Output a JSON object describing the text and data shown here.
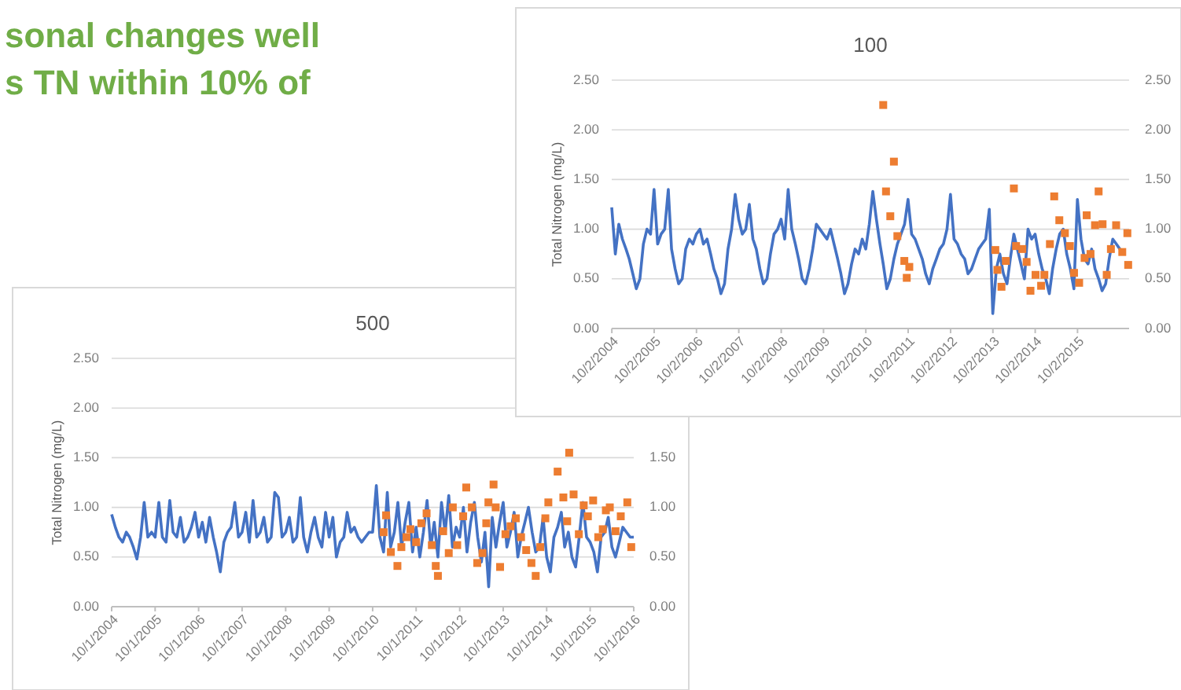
{
  "chart_data": [
    {
      "type": "other",
      "annotations": [
        "sonal changes well",
        "s TN within 10% of"
      ]
    },
    {
      "type": "line",
      "title": "100",
      "ylabel": "Total Nitrogen (mg/L)",
      "xlim": [
        "2004-10-01",
        "2016-12-20"
      ],
      "ylim": [
        0,
        2.5
      ],
      "y2lim": [
        0,
        2.5
      ],
      "grid": "y",
      "xticks": [
        {
          "value": "2004-10-02",
          "label": "10/2/2004"
        },
        {
          "value": "2005-10-02",
          "label": "10/2/2005"
        },
        {
          "value": "2006-10-02",
          "label": "10/2/2006"
        },
        {
          "value": "2007-10-02",
          "label": "10/2/2007"
        },
        {
          "value": "2008-10-02",
          "label": "10/2/2008"
        },
        {
          "value": "2009-10-02",
          "label": "10/2/2009"
        },
        {
          "value": "2010-10-02",
          "label": "10/2/2010"
        },
        {
          "value": "2011-10-02",
          "label": "10/2/2011"
        },
        {
          "value": "2012-10-02",
          "label": "10/2/2012"
        },
        {
          "value": "2013-10-02",
          "label": "10/2/2013"
        },
        {
          "value": "2014-10-02",
          "label": "10/2/2014"
        },
        {
          "value": "2015-10-02",
          "label": "10/2/2015"
        }
      ],
      "yticks": [
        {
          "value": 0,
          "label": "0.00"
        },
        {
          "value": 0.5,
          "label": "0.50"
        },
        {
          "value": 1,
          "label": "1.00"
        },
        {
          "value": 1.5,
          "label": "1.50"
        },
        {
          "value": 2,
          "label": "2.00"
        },
        {
          "value": 2.5,
          "label": "2.50"
        }
      ],
      "y2ticks": [
        {
          "value": 0,
          "label": "0.00"
        },
        {
          "value": 0.5,
          "label": "0.50"
        },
        {
          "value": 1,
          "label": "1.00"
        },
        {
          "value": 1.5,
          "label": "1.50"
        },
        {
          "value": 2,
          "label": "2.00"
        },
        {
          "value": 2.5,
          "label": "2.50"
        }
      ],
      "series": [
        {
          "type": "line",
          "color": "#4472c4",
          "marker": "none",
          "x": [
            "2004-10",
            "2004-11",
            "2004-12",
            "2005-01",
            "2005-02",
            "2005-03",
            "2005-04",
            "2005-05",
            "2005-06",
            "2005-07",
            "2005-08",
            "2005-09",
            "2005-10",
            "2005-11",
            "2005-12",
            "2006-01",
            "2006-02",
            "2006-03",
            "2006-04",
            "2006-05",
            "2006-06",
            "2006-07",
            "2006-08",
            "2006-09",
            "2006-10",
            "2006-11",
            "2006-12",
            "2007-01",
            "2007-02",
            "2007-03",
            "2007-04",
            "2007-05",
            "2007-06",
            "2007-07",
            "2007-08",
            "2007-09",
            "2007-10",
            "2007-11",
            "2007-12",
            "2008-01",
            "2008-02",
            "2008-03",
            "2008-04",
            "2008-05",
            "2008-06",
            "2008-07",
            "2008-08",
            "2008-09",
            "2008-10",
            "2008-11",
            "2008-12",
            "2009-01",
            "2009-02",
            "2009-03",
            "2009-04",
            "2009-05",
            "2009-06",
            "2009-07",
            "2009-08",
            "2009-09",
            "2009-10",
            "2009-11",
            "2009-12",
            "2010-01",
            "2010-02",
            "2010-03",
            "2010-04",
            "2010-05",
            "2010-06",
            "2010-07",
            "2010-08",
            "2010-09",
            "2010-10",
            "2010-11",
            "2010-12",
            "2011-01",
            "2011-02",
            "2011-03",
            "2011-04",
            "2011-05",
            "2011-06",
            "2011-07",
            "2011-08",
            "2011-09",
            "2011-10",
            "2011-11",
            "2011-12",
            "2012-01",
            "2012-02",
            "2012-03",
            "2012-04",
            "2012-05",
            "2012-06",
            "2012-07",
            "2012-08",
            "2012-09",
            "2012-10",
            "2012-11",
            "2012-12",
            "2013-01",
            "2013-02",
            "2013-03",
            "2013-04",
            "2013-05",
            "2013-06",
            "2013-07",
            "2013-08",
            "2013-09",
            "2013-10",
            "2013-11",
            "2013-12",
            "2014-01",
            "2014-02",
            "2014-03",
            "2014-04",
            "2014-05",
            "2014-06",
            "2014-07",
            "2014-08",
            "2014-09",
            "2014-10",
            "2014-11",
            "2014-12",
            "2015-01",
            "2015-02",
            "2015-03",
            "2015-04",
            "2015-05",
            "2015-06",
            "2015-07",
            "2015-08",
            "2015-09",
            "2015-10",
            "2015-11",
            "2015-12",
            "2016-01",
            "2016-02",
            "2016-03",
            "2016-04",
            "2016-05",
            "2016-06",
            "2016-07",
            "2016-08",
            "2016-09",
            "2016-10",
            "2016-11"
          ],
          "values": [
            1.22,
            0.75,
            1.05,
            0.9,
            0.8,
            0.7,
            0.55,
            0.4,
            0.5,
            0.85,
            1.0,
            0.95,
            1.4,
            0.85,
            0.95,
            1.0,
            1.4,
            0.8,
            0.6,
            0.45,
            0.5,
            0.8,
            0.9,
            0.85,
            0.95,
            1.0,
            0.85,
            0.9,
            0.75,
            0.6,
            0.5,
            0.35,
            0.45,
            0.8,
            1.0,
            1.35,
            1.1,
            0.95,
            1.0,
            1.25,
            0.9,
            0.8,
            0.6,
            0.45,
            0.5,
            0.75,
            0.95,
            1.0,
            1.1,
            0.9,
            1.4,
            1.0,
            0.85,
            0.7,
            0.5,
            0.45,
            0.6,
            0.8,
            1.05,
            1.0,
            0.95,
            0.9,
            1.0,
            0.85,
            0.7,
            0.55,
            0.35,
            0.45,
            0.65,
            0.8,
            0.75,
            0.9,
            0.8,
            1.05,
            1.38,
            1.1,
            0.85,
            0.65,
            0.4,
            0.5,
            0.7,
            0.85,
            0.95,
            1.05,
            1.3,
            0.95,
            0.9,
            0.8,
            0.7,
            0.55,
            0.45,
            0.6,
            0.7,
            0.8,
            0.85,
            1.0,
            1.35,
            0.9,
            0.85,
            0.75,
            0.7,
            0.55,
            0.6,
            0.7,
            0.8,
            0.85,
            0.9,
            1.2,
            0.15,
            0.6,
            0.75,
            0.55,
            0.45,
            0.7,
            0.95,
            0.8,
            0.65,
            0.5,
            1.0,
            0.9,
            0.95,
            0.75,
            0.6,
            0.5,
            0.35,
            0.6,
            0.8,
            0.95,
            1.0,
            0.75,
            0.6,
            0.4,
            1.3,
            0.9,
            0.7,
            0.65,
            0.8,
            0.6,
            0.5,
            0.38,
            0.45,
            0.7,
            0.9,
            0.85,
            0.8,
            0.75
          ]
        },
        {
          "type": "scatter",
          "color": "#ed7d31",
          "marker": "square",
          "x": [
            "2011-03-01",
            "2011-03-25",
            "2011-05-01",
            "2011-06-01",
            "2011-07-01",
            "2011-08-30",
            "2011-09-20",
            "2011-10-12",
            "2013-10-23",
            "2013-11-10",
            "2013-12-15",
            "2014-01-22",
            "2014-04-01",
            "2014-04-20",
            "2014-06-13",
            "2014-07-20",
            "2014-08-22",
            "2014-10-05",
            "2014-11-22",
            "2014-12-20",
            "2015-02-06",
            "2015-03-15",
            "2015-04-28",
            "2015-06-15",
            "2015-07-28",
            "2015-09-02",
            "2015-10-16",
            "2015-12-02",
            "2015-12-20",
            "2016-01-22",
            "2016-03-01",
            "2016-04-01",
            "2016-05-05",
            "2016-06-10",
            "2016-07-16",
            "2016-08-30",
            "2016-10-22",
            "2016-12-05",
            "2016-12-12"
          ],
          "values": [
            2.25,
            1.38,
            1.13,
            1.68,
            0.93,
            0.68,
            0.51,
            0.62,
            0.79,
            0.59,
            0.42,
            0.68,
            1.41,
            0.83,
            0.8,
            0.67,
            0.38,
            0.54,
            0.43,
            0.54,
            0.85,
            1.33,
            1.09,
            0.96,
            0.83,
            0.56,
            0.46,
            0.71,
            1.14,
            0.75,
            1.04,
            1.38,
            1.05,
            0.54,
            0.8,
            1.04,
            0.77,
            0.96,
            0.64
          ]
        }
      ]
    },
    {
      "type": "line",
      "title": "500",
      "ylabel": "Total Nitrogen (mg/L)",
      "xlim": [
        "2004-10-01",
        "2016-10-01"
      ],
      "ylim": [
        0,
        2.5
      ],
      "y2lim": [
        0,
        2.5
      ],
      "grid": "y",
      "xticks": [
        {
          "value": "2004-10-01",
          "label": "10/1/2004"
        },
        {
          "value": "2005-10-01",
          "label": "10/1/2005"
        },
        {
          "value": "2006-10-01",
          "label": "10/1/2006"
        },
        {
          "value": "2007-10-01",
          "label": "10/1/2007"
        },
        {
          "value": "2008-10-01",
          "label": "10/1/2008"
        },
        {
          "value": "2009-10-01",
          "label": "10/1/2009"
        },
        {
          "value": "2010-10-01",
          "label": "10/1/2010"
        },
        {
          "value": "2011-10-01",
          "label": "10/1/2011"
        },
        {
          "value": "2012-10-01",
          "label": "10/1/2012"
        },
        {
          "value": "2013-10-01",
          "label": "10/1/2013"
        },
        {
          "value": "2014-10-01",
          "label": "10/1/2014"
        },
        {
          "value": "2015-10-01",
          "label": "10/1/2015"
        },
        {
          "value": "2016-10-01",
          "label": "10/1/2016"
        }
      ],
      "yticks": [
        {
          "value": 0,
          "label": "0.00"
        },
        {
          "value": 0.5,
          "label": "0.50"
        },
        {
          "value": 1,
          "label": "1.00"
        },
        {
          "value": 1.5,
          "label": "1.50"
        },
        {
          "value": 2,
          "label": "2.00"
        },
        {
          "value": 2.5,
          "label": "2.50"
        }
      ],
      "y2ticks": [
        {
          "value": 0,
          "label": "0.00"
        },
        {
          "value": 0.5,
          "label": "0.50"
        },
        {
          "value": 1,
          "label": "1.00"
        },
        {
          "value": 1.5,
          "label": "1.50"
        }
      ],
      "series": [
        {
          "type": "line",
          "color": "#4472c4",
          "marker": "none",
          "x": [
            "2004-10",
            "2004-11",
            "2004-12",
            "2005-01",
            "2005-02",
            "2005-03",
            "2005-04",
            "2005-05",
            "2005-06",
            "2005-07",
            "2005-08",
            "2005-09",
            "2005-10",
            "2005-11",
            "2005-12",
            "2006-01",
            "2006-02",
            "2006-03",
            "2006-04",
            "2006-05",
            "2006-06",
            "2006-07",
            "2006-08",
            "2006-09",
            "2006-10",
            "2006-11",
            "2006-12",
            "2007-01",
            "2007-02",
            "2007-03",
            "2007-04",
            "2007-05",
            "2007-06",
            "2007-07",
            "2007-08",
            "2007-09",
            "2007-10",
            "2007-11",
            "2007-12",
            "2008-01",
            "2008-02",
            "2008-03",
            "2008-04",
            "2008-05",
            "2008-06",
            "2008-07",
            "2008-08",
            "2008-09",
            "2008-10",
            "2008-11",
            "2008-12",
            "2009-01",
            "2009-02",
            "2009-03",
            "2009-04",
            "2009-05",
            "2009-06",
            "2009-07",
            "2009-08",
            "2009-09",
            "2009-10",
            "2009-11",
            "2009-12",
            "2010-01",
            "2010-02",
            "2010-03",
            "2010-04",
            "2010-05",
            "2010-06",
            "2010-07",
            "2010-08",
            "2010-09",
            "2010-10",
            "2010-11",
            "2010-12",
            "2011-01",
            "2011-02",
            "2011-03",
            "2011-04",
            "2011-05",
            "2011-06",
            "2011-07",
            "2011-08",
            "2011-09",
            "2011-10",
            "2011-11",
            "2011-12",
            "2012-01",
            "2012-02",
            "2012-03",
            "2012-04",
            "2012-05",
            "2012-06",
            "2012-07",
            "2012-08",
            "2012-09",
            "2012-10",
            "2012-11",
            "2012-12",
            "2013-01",
            "2013-02",
            "2013-03",
            "2013-04",
            "2013-05",
            "2013-06",
            "2013-07",
            "2013-08",
            "2013-09",
            "2013-10",
            "2013-11",
            "2013-12",
            "2014-01",
            "2014-02",
            "2014-03",
            "2014-04",
            "2014-05",
            "2014-06",
            "2014-07",
            "2014-08",
            "2014-09",
            "2014-10",
            "2014-11",
            "2014-12",
            "2015-01",
            "2015-02",
            "2015-03",
            "2015-04",
            "2015-05",
            "2015-06",
            "2015-07",
            "2015-08",
            "2015-09",
            "2015-10",
            "2015-11",
            "2015-12",
            "2016-01",
            "2016-02",
            "2016-03",
            "2016-04",
            "2016-05",
            "2016-06",
            "2016-07",
            "2016-08",
            "2016-09",
            "2016-10"
          ],
          "values": [
            0.93,
            0.8,
            0.7,
            0.65,
            0.75,
            0.7,
            0.6,
            0.48,
            0.7,
            1.05,
            0.7,
            0.75,
            0.7,
            1.05,
            0.7,
            0.65,
            1.07,
            0.75,
            0.7,
            0.9,
            0.65,
            0.7,
            0.8,
            0.95,
            0.7,
            0.85,
            0.65,
            0.9,
            0.7,
            0.55,
            0.35,
            0.65,
            0.75,
            0.8,
            1.05,
            0.7,
            0.75,
            0.95,
            0.65,
            1.07,
            0.7,
            0.75,
            0.9,
            0.65,
            0.7,
            1.15,
            1.1,
            0.7,
            0.75,
            0.9,
            0.65,
            0.7,
            1.1,
            0.7,
            0.55,
            0.75,
            0.9,
            0.7,
            0.6,
            0.95,
            0.7,
            0.9,
            0.5,
            0.65,
            0.7,
            0.95,
            0.75,
            0.8,
            0.7,
            0.65,
            0.7,
            0.75,
            0.75,
            1.22,
            0.7,
            0.55,
            1.15,
            0.6,
            0.75,
            1.05,
            0.6,
            0.85,
            1.05,
            0.55,
            0.8,
            0.5,
            0.75,
            1.07,
            0.6,
            0.85,
            0.5,
            1.05,
            0.75,
            1.12,
            0.6,
            0.8,
            0.7,
            1.0,
            0.55,
            0.85,
            1.05,
            0.7,
            0.45,
            0.75,
            0.2,
            0.9,
            0.6,
            0.85,
            1.05,
            0.6,
            0.75,
            0.95,
            0.5,
            0.7,
            0.85,
            1.0,
            0.75,
            0.55,
            0.6,
            0.9,
            0.5,
            0.35,
            0.7,
            0.8,
            0.95,
            0.6,
            0.75,
            0.5,
            0.4,
            0.7,
            1.05,
            0.7,
            0.65,
            0.55,
            0.35,
            0.7,
            0.75,
            0.9,
            0.6,
            0.5,
            0.65,
            0.8,
            0.75,
            0.7,
            0.7
          ]
        },
        {
          "type": "scatter",
          "color": "#ed7d31",
          "marker": "square",
          "x": [
            "2011-01-01",
            "2011-01-22",
            "2011-03-03",
            "2011-04-27",
            "2011-05-30",
            "2011-07-12",
            "2011-08-14",
            "2011-10-01",
            "2011-11-14",
            "2011-12-28",
            "2012-02-10",
            "2012-03-14",
            "2012-04-01",
            "2012-05-15",
            "2012-07-01",
            "2012-08-04",
            "2012-09-10",
            "2012-10-30",
            "2012-11-25",
            "2013-01-11",
            "2013-02-25",
            "2013-04-10",
            "2013-05-12",
            "2013-05-30",
            "2013-07-12",
            "2013-07-30",
            "2013-09-05",
            "2013-10-20",
            "2013-12-02",
            "2014-01-15",
            "2014-02-28",
            "2014-04-12",
            "2014-05-26",
            "2014-07-01",
            "2014-08-08",
            "2014-09-20",
            "2014-10-15",
            "2015-01-01",
            "2015-02-18",
            "2015-03-22",
            "2015-04-08",
            "2015-05-15",
            "2015-06-28",
            "2015-08-08",
            "2015-09-12",
            "2015-10-26",
            "2015-12-08",
            "2016-01-15",
            "2016-02-10",
            "2016-03-14",
            "2016-05-01",
            "2016-06-14",
            "2016-08-08",
            "2016-09-10"
          ],
          "values": [
            0.75,
            0.92,
            0.55,
            0.41,
            0.6,
            0.7,
            0.78,
            0.65,
            0.84,
            0.94,
            0.62,
            0.41,
            0.31,
            0.76,
            0.54,
            1.0,
            0.62,
            0.91,
            1.2,
            1.0,
            0.44,
            0.54,
            0.84,
            1.05,
            1.23,
            1.0,
            0.4,
            0.73,
            0.81,
            0.89,
            0.7,
            0.57,
            0.44,
            0.31,
            0.6,
            0.89,
            1.05,
            1.36,
            1.1,
            0.86,
            1.55,
            1.13,
            0.73,
            1.02,
            0.91,
            1.07,
            0.7,
            0.78,
            0.97,
            1.0,
            0.76,
            0.91,
            1.05,
            0.6
          ]
        }
      ]
    }
  ]
}
